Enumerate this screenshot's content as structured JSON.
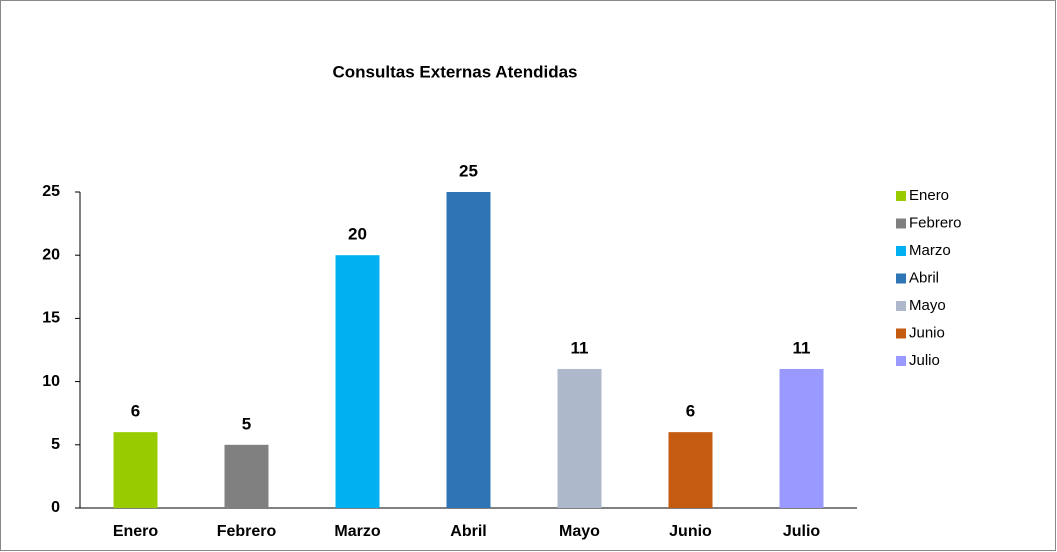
{
  "chart_data": {
    "type": "bar",
    "title": "Consultas Externas Atendidas",
    "categories": [
      "Enero",
      "Febrero",
      "Marzo",
      "Abril",
      "Mayo",
      "Junio",
      "Julio"
    ],
    "values": [
      6,
      5,
      20,
      25,
      11,
      6,
      11
    ],
    "colors": [
      "#99cc00",
      "#808080",
      "#00b0f0",
      "#2e75b6",
      "#adb9ca",
      "#c55a11",
      "#9999ff"
    ],
    "ylim": [
      0,
      25
    ],
    "yticks": [
      0,
      5,
      10,
      15,
      20,
      25
    ],
    "grid": false,
    "legend": "right"
  }
}
